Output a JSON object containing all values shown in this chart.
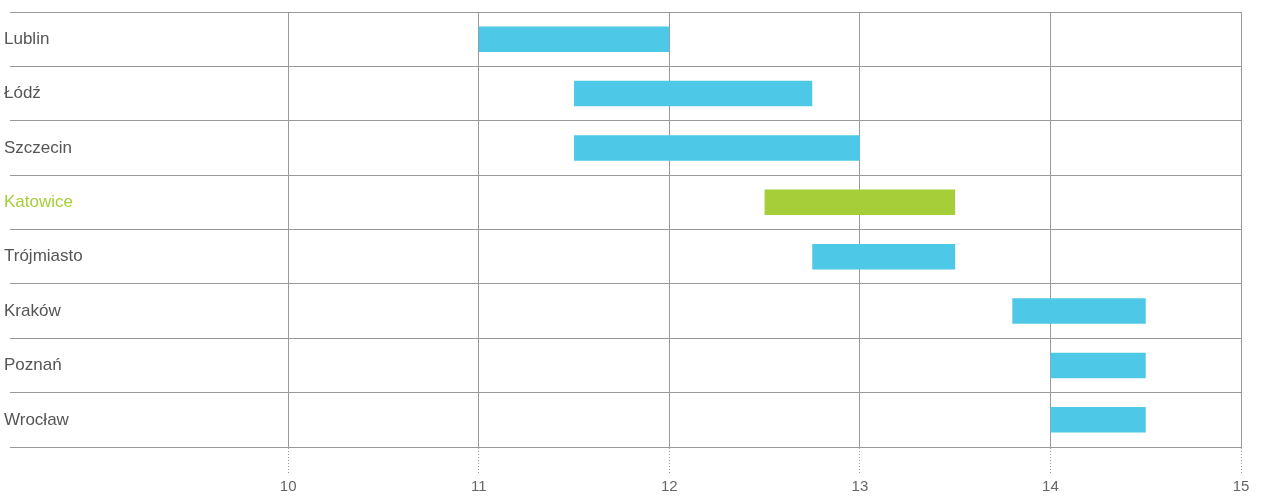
{
  "chart_data": {
    "type": "bar",
    "orientation": "horizontal",
    "categories": [
      "Lublin",
      "Łódź",
      "Szczecin",
      "Katowice",
      "Trójmiasto",
      "Kraków",
      "Poznań",
      "Wrocław"
    ],
    "base": [
      11,
      11.5,
      11.5,
      12.5,
      12.75,
      13.8,
      14,
      14
    ],
    "values": [
      1,
      1.25,
      1.5,
      1,
      0.75,
      0.7,
      0.5,
      0.5
    ],
    "color": "#4dc8e6",
    "colors": [
      "#4dc8e6",
      "#4dc8e6",
      "#4dc8e6",
      "#a6ce39",
      "#4dc8e6",
      "#4dc8e6",
      "#4dc8e6",
      "#4dc8e6"
    ],
    "xlim": [
      8.54,
      15
    ],
    "xticks": [
      10,
      11,
      12,
      13,
      14,
      15
    ],
    "grid": true,
    "legend": false
  }
}
